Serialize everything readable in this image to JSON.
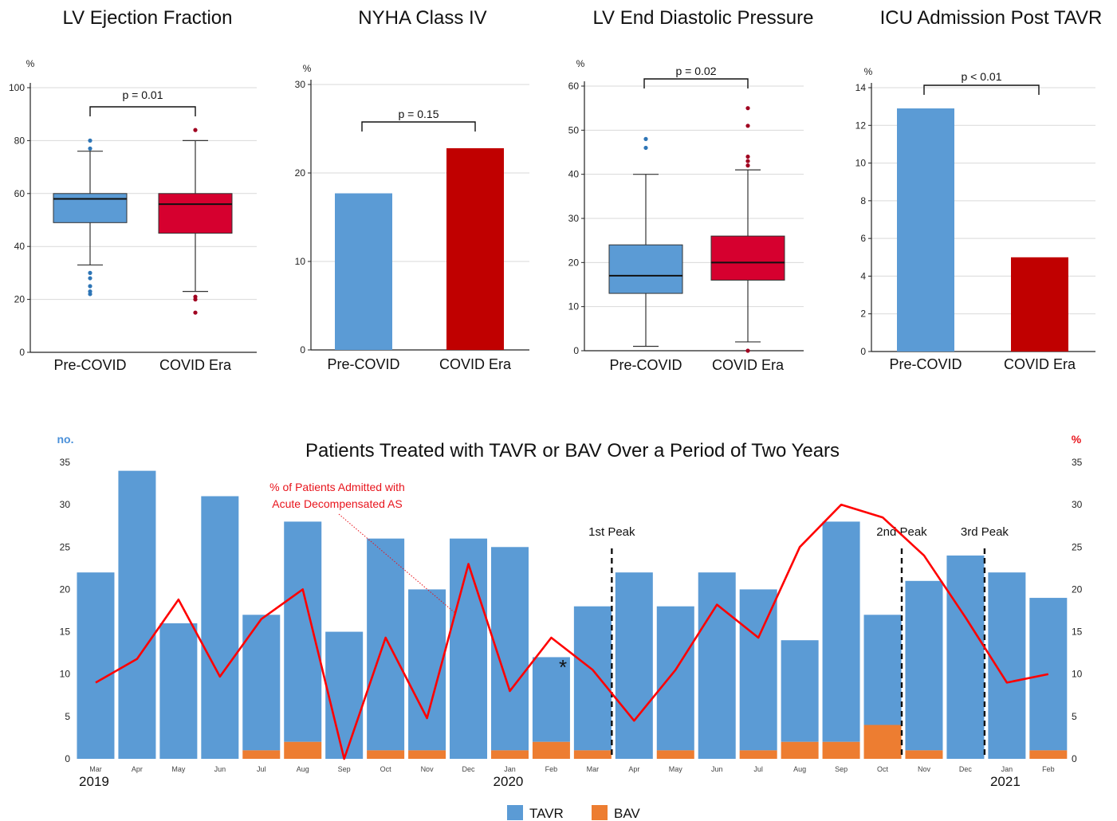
{
  "colors": {
    "pre": "#5b9bd5",
    "covid_box": "#d6002f",
    "covid_bar": "#c00000",
    "tavr": "#5b9bd5",
    "bav": "#ed7d31",
    "line": "#ff0000",
    "pre_outlier": "#2e75b6",
    "covid_outlier": "#a00020"
  },
  "chart_data": [
    {
      "type": "box",
      "title": "LV Ejection Fraction",
      "ylabel": "%",
      "ylim": [
        0,
        100
      ],
      "yticks": [
        0,
        20,
        40,
        60,
        80,
        100
      ],
      "categories": [
        "Pre-COVID",
        "COVID Era"
      ],
      "boxes": [
        {
          "name": "Pre-COVID",
          "min": 33,
          "q1": 49,
          "median": 58,
          "q3": 60,
          "max": 76,
          "outliers": [
            80,
            77,
            30,
            28,
            25,
            23,
            22
          ]
        },
        {
          "name": "COVID Era",
          "min": 23,
          "q1": 45,
          "median": 56,
          "q3": 60,
          "max": 80,
          "outliers": [
            84,
            21,
            20,
            15
          ]
        }
      ],
      "pvalue": "p = 0.01"
    },
    {
      "type": "bar",
      "title": "NYHA Class IV",
      "ylabel": "%",
      "ylim": [
        0,
        30
      ],
      "yticks": [
        0,
        10,
        20,
        30
      ],
      "categories": [
        "Pre-COVID",
        "COVID Era"
      ],
      "values": [
        17.7,
        22.8
      ],
      "pvalue": "p = 0.15"
    },
    {
      "type": "box",
      "title": "LV End Diastolic Pressure",
      "ylabel": "%",
      "ylim": [
        0,
        60
      ],
      "yticks": [
        0,
        10,
        20,
        30,
        40,
        50,
        60
      ],
      "categories": [
        "Pre-COVID",
        "COVID Era"
      ],
      "boxes": [
        {
          "name": "Pre-COVID",
          "min": 1,
          "q1": 13,
          "median": 17,
          "q3": 24,
          "max": 40,
          "outliers": [
            48,
            46
          ]
        },
        {
          "name": "COVID Era",
          "min": 2,
          "q1": 16,
          "median": 20,
          "q3": 26,
          "max": 41,
          "outliers": [
            55,
            51,
            44,
            43,
            42,
            0
          ]
        }
      ],
      "pvalue": "p = 0.02"
    },
    {
      "type": "bar",
      "title": "ICU Admission Post TAVR",
      "ylabel": "%",
      "ylim": [
        0,
        14
      ],
      "yticks": [
        0,
        2,
        4,
        6,
        8,
        10,
        12,
        14
      ],
      "categories": [
        "Pre-COVID",
        "COVID Era"
      ],
      "values": [
        12.9,
        5.0
      ],
      "pvalue": "p < 0.01"
    },
    {
      "type": "bar+line",
      "title": "Patients Treated with TAVR or BAV Over a Period of Two Years",
      "ylabel": "no.",
      "y2label": "%",
      "ylim": [
        0,
        35
      ],
      "yticks": [
        0,
        5,
        10,
        15,
        20,
        25,
        30,
        35
      ],
      "categories": [
        "Mar",
        "Apr",
        "May",
        "Jun",
        "Jul",
        "Aug",
        "Sep",
        "Oct",
        "Nov",
        "Dec",
        "Jan",
        "Feb",
        "Mar",
        "Apr",
        "May",
        "Jun",
        "Jul",
        "Aug",
        "Sep",
        "Oct",
        "Nov",
        "Dec",
        "Jan",
        "Feb"
      ],
      "years": [
        {
          "label": "2019",
          "index": 0
        },
        {
          "label": "2020",
          "index": 10
        },
        {
          "label": "2021",
          "index": 22
        }
      ],
      "series": [
        {
          "name": "TAVR",
          "values": [
            22,
            34,
            16,
            31,
            16,
            26,
            15,
            25,
            19,
            26,
            24,
            10,
            17,
            22,
            17,
            22,
            19,
            12,
            26,
            13,
            20,
            24,
            22,
            18
          ]
        },
        {
          "name": "BAV",
          "values": [
            0,
            0,
            0,
            0,
            1,
            2,
            0,
            1,
            1,
            0,
            1,
            2,
            1,
            0,
            1,
            0,
            1,
            2,
            2,
            4,
            1,
            0,
            0,
            1
          ]
        }
      ],
      "line": {
        "name": "% of Patients Admitted with Acute Decompensated AS",
        "values": [
          9,
          11.8,
          18.8,
          9.7,
          16.5,
          20,
          0,
          14.3,
          4.8,
          23,
          8,
          14.3,
          10.5,
          4.5,
          10.5,
          18.2,
          14.3,
          25,
          30,
          28.5,
          24,
          16.7,
          9,
          10
        ]
      },
      "annotation_lines": [
        "% of Patients Admitted with",
        "Acute Decompensated AS"
      ],
      "peaks": [
        {
          "label": "1st Peak",
          "after_index": 12
        },
        {
          "label": "2nd Peak",
          "after_index": 19
        },
        {
          "label": "3rd Peak",
          "after_index": 21
        }
      ],
      "asterisk": {
        "label": "*",
        "index": 11,
        "value": 11
      },
      "legend": [
        "TAVR",
        "BAV"
      ]
    }
  ]
}
